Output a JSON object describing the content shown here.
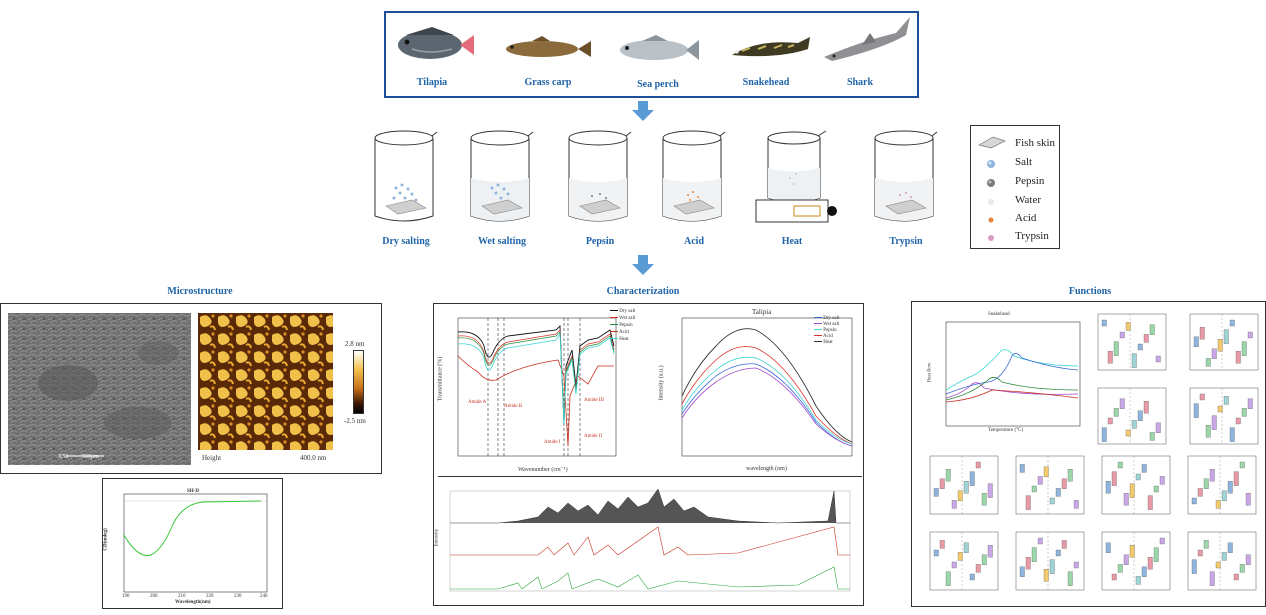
{
  "fish": [
    {
      "label": "Tilapia"
    },
    {
      "label": "Grass carp"
    },
    {
      "label": "Sea perch"
    },
    {
      "label": "Snakehead"
    },
    {
      "label": "Shark"
    }
  ],
  "treatments": [
    {
      "label": "Dry salting"
    },
    {
      "label": "Wet salting"
    },
    {
      "label": "Pepsin"
    },
    {
      "label": "Acid"
    },
    {
      "label": "Heat"
    },
    {
      "label": "Trypsin"
    }
  ],
  "legend": [
    {
      "label": "Fish skin",
      "icon": "fish-skin-icon",
      "color": "#bdbdbd"
    },
    {
      "label": "Salt",
      "icon": "salt-icon",
      "color": "#8fb4dd"
    },
    {
      "label": "Pepsin",
      "icon": "pepsin-icon",
      "color": "#7a7a7a"
    },
    {
      "label": "Water",
      "icon": "water-icon",
      "color": "#d9dde3"
    },
    {
      "label": "Acid",
      "icon": "acid-icon",
      "color": "#e8823a"
    },
    {
      "label": "Trypsin",
      "icon": "trypsin-icon",
      "color": "#d79bc4"
    }
  ],
  "sections": {
    "microstructure": "Microstructure",
    "characterization": "Characterization",
    "functions": "Functions"
  },
  "sem": {
    "scale_label": "X50",
    "scale_value": "500μm"
  },
  "afm": {
    "label": "Height",
    "scale": "400.0 nm",
    "max": "2.8 nm",
    "min": "-2.5 nm"
  },
  "cd": {
    "title": "SH-D",
    "ylabel": "CD(mdeg)",
    "xlabel": "Wavelength(nm)",
    "xticks": [
      "190",
      "200",
      "210",
      "220",
      "230",
      "240"
    ],
    "yticks": [
      "10",
      "0",
      "-10",
      "-20",
      "-30",
      "-40",
      "-50",
      "-60",
      "-70",
      "-80"
    ]
  },
  "ftir": {
    "legend": [
      "Dry salt",
      "Wet salt",
      "Pepsin",
      "Acid",
      "Heat"
    ],
    "colors": [
      "#111111",
      "#e0302a",
      "#2a8a3a",
      "#c8301e",
      "#3ad6d2"
    ],
    "ylabel": "Transmittance (%)",
    "xlabel": "Wavenumber (cm⁻¹)",
    "xticks": [
      "4000",
      "3500",
      "3000",
      "2500",
      "2000",
      "1500",
      "1000",
      "500"
    ],
    "yticks": [
      "100",
      "95",
      "90",
      "85",
      "80",
      "75",
      "70",
      "65",
      "60",
      "55",
      "50"
    ],
    "annotations": [
      "Amide A",
      "Amide B",
      "Amide I",
      "Amide II",
      "Amide III"
    ]
  },
  "fluor": {
    "title": "Talipia",
    "legend": [
      "Dry salt",
      "Wet salt",
      "Pepsin",
      "Acid",
      "Heat"
    ],
    "ylabel": "Intensity (a.u.)",
    "xlabel": "wavelength (nm)",
    "xticks": [
      "440",
      "460",
      "480",
      "500",
      "520",
      "540",
      "560",
      "580",
      "600"
    ],
    "yticks": [
      "3.5",
      "3.0",
      "2.5",
      "2.0",
      "1.5",
      "1.0",
      "0.5"
    ]
  },
  "ms": {
    "ylabel": "Intensity"
  },
  "dsc": {
    "title": "Snakehead",
    "xlabel": "Temperature (°C)",
    "ylabel": "Heat flow"
  }
}
